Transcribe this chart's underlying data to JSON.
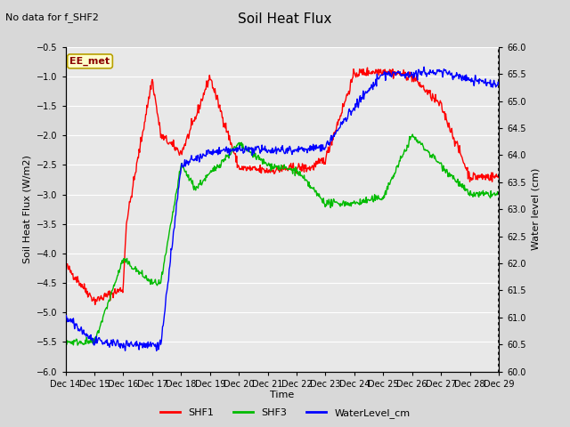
{
  "title": "Soil Heat Flux",
  "note": "No data for f_SHF2",
  "xlabel": "Time",
  "ylabel_left": "Soil Heat Flux (W/m2)",
  "ylabel_right": "Water level (cm)",
  "ylim_left": [
    -6.0,
    -0.5
  ],
  "ylim_right": [
    60.0,
    66.0
  ],
  "yticks_left": [
    -6.0,
    -5.5,
    -5.0,
    -4.5,
    -4.0,
    -3.5,
    -3.0,
    -2.5,
    -2.0,
    -1.5,
    -1.0,
    -0.5
  ],
  "yticks_right": [
    60.0,
    60.5,
    61.0,
    61.5,
    62.0,
    62.5,
    63.0,
    63.5,
    64.0,
    64.5,
    65.0,
    65.5,
    66.0
  ],
  "bg_color": "#d8d8d8",
  "plot_bg_color": "#e8e8e8",
  "grid_color": "#ffffff",
  "ee_met_label": "EE_met",
  "ee_met_bg": "#ffffcc",
  "ee_met_border": "#b8a000",
  "ee_met_text_color": "#8b0000",
  "legend_labels": [
    "SHF1",
    "SHF3",
    "WaterLevel_cm"
  ],
  "legend_colors": [
    "#ff0000",
    "#00bb00",
    "#0000ff"
  ],
  "line_width": 1.0,
  "title_fontsize": 11,
  "axis_label_fontsize": 8,
  "tick_fontsize": 7,
  "note_fontsize": 8
}
